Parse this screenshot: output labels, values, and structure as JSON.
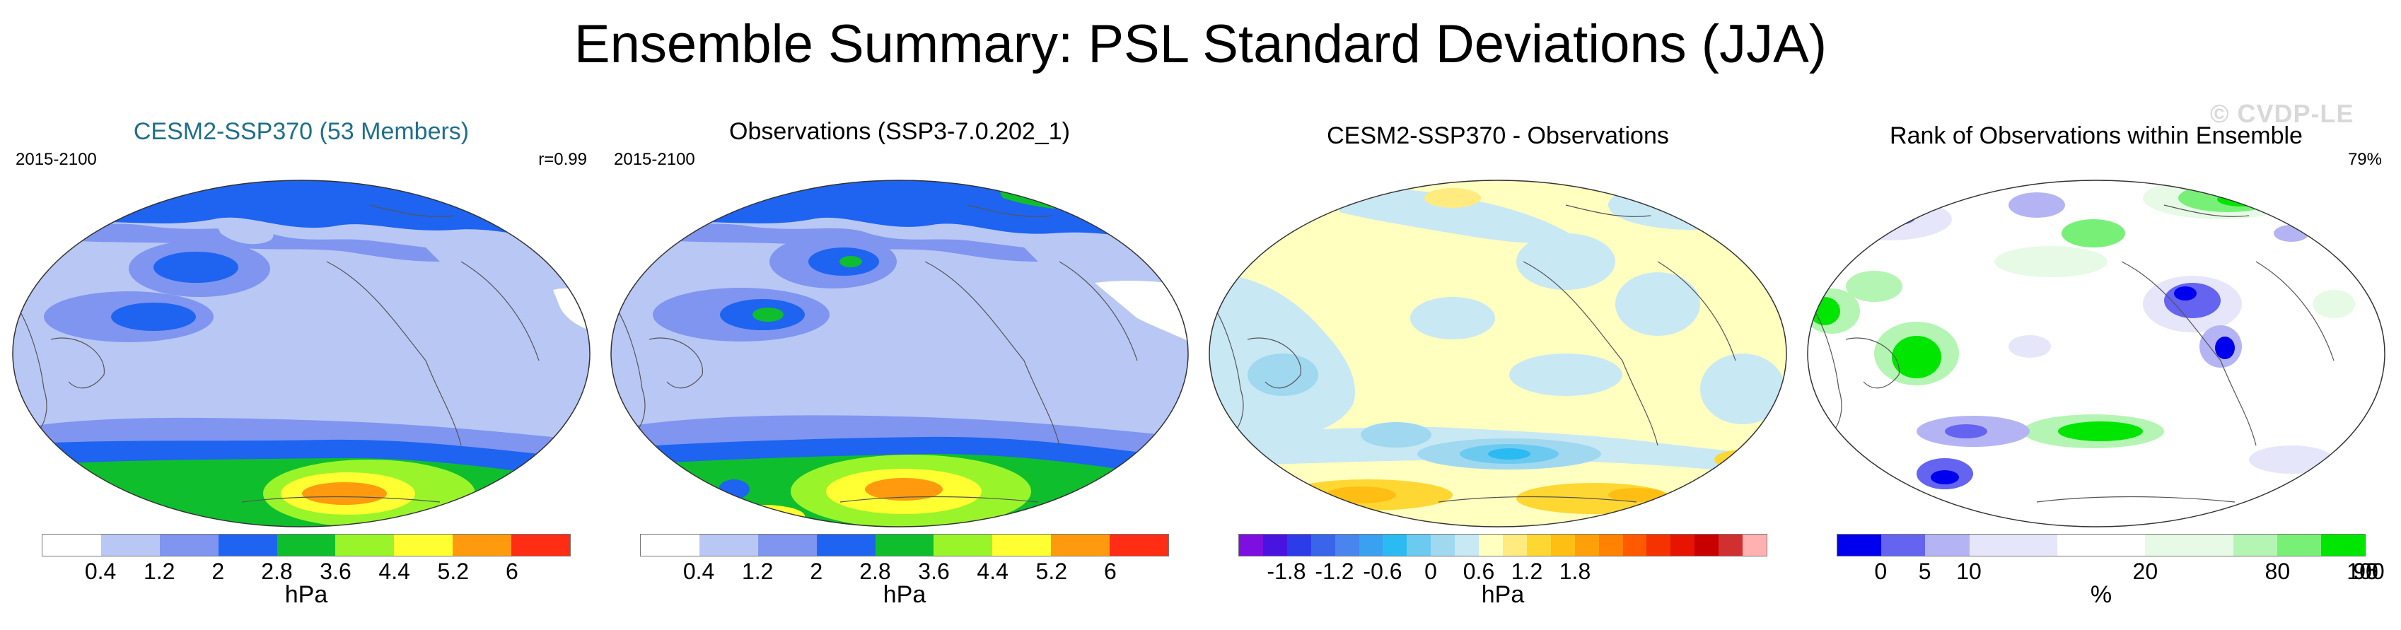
{
  "title": "Ensemble Summary: PSL Standard Deviations (JJA)",
  "watermark": "© CVDP-LE",
  "chart_data": [
    {
      "type": "heatmap",
      "title": "CESM2-SSP370 (53 Members)",
      "period": "2015-2100",
      "stat": "r=0.99",
      "units": "hPa",
      "tick_labels": [
        "0.4",
        "1.2",
        "2",
        "2.8",
        "3.6",
        "4.4",
        "5.2",
        "6"
      ],
      "tick_positions": [
        1,
        3,
        5,
        7,
        9,
        11,
        13,
        15
      ],
      "colorbar_colors": [
        "#ffffff",
        "#b9c7f5",
        "#7f95f0",
        "#1e64f0",
        "#0fbe2d",
        "#99f52a",
        "#ffff32",
        "#ff9a0f",
        "#ff2d14"
      ],
      "colorbar_bounds_hpa": [
        0.4,
        1.2,
        2,
        2.8,
        3.6,
        4.4,
        5.2,
        6
      ]
    },
    {
      "type": "heatmap",
      "title": "Observations (SSP3-7.0.202_1)",
      "period": "2015-2100",
      "units": "hPa",
      "tick_labels": [
        "0.4",
        "1.2",
        "2",
        "2.8",
        "3.6",
        "4.4",
        "5.2",
        "6"
      ],
      "tick_positions": [
        1,
        3,
        5,
        7,
        9,
        11,
        13,
        15
      ],
      "colorbar_colors": [
        "#ffffff",
        "#b9c7f5",
        "#7f95f0",
        "#1e64f0",
        "#0fbe2d",
        "#99f52a",
        "#ffff32",
        "#ff9a0f",
        "#ff2d14"
      ],
      "colorbar_bounds_hpa": [
        0.4,
        1.2,
        2,
        2.8,
        3.6,
        4.4,
        5.2,
        6
      ]
    },
    {
      "type": "heatmap",
      "title": "CESM2-SSP370 - Observations",
      "units": "hPa",
      "tick_labels": [
        "-1.8",
        "-1.2",
        "-0.6",
        "0",
        "0.6",
        "1.2",
        "1.8"
      ],
      "tick_positions": [
        3,
        7,
        11,
        15,
        19,
        23,
        27
      ],
      "colorbar_colors": [
        "#7d10e0",
        "#4a14e0",
        "#2c3ce8",
        "#3a64ea",
        "#4a84ee",
        "#3aa0f0",
        "#2cbaf2",
        "#6ccaf0",
        "#a0d8f0",
        "#c8e8f4",
        "#ffffc0",
        "#ffeb80",
        "#ffd732",
        "#ffbe14",
        "#ffa00a",
        "#ff8200",
        "#ff5a00",
        "#f53200",
        "#e61400",
        "#c80000",
        "#d03030",
        "#ffb0b0"
      ],
      "colorbar_bounds_hpa": [
        -1.8,
        -1.2,
        -0.6,
        0,
        0.6,
        1.2,
        1.8
      ]
    },
    {
      "type": "heatmap",
      "title": "Rank of Observations within Ensemble",
      "stat": "79%",
      "units": "%",
      "tick_labels": [
        "0",
        "5",
        "10",
        "20",
        "80",
        "90",
        "95",
        "100"
      ],
      "tick_positions": [
        1,
        2,
        3,
        5,
        7,
        9,
        10,
        11
      ],
      "colorbar_colors": [
        "#0000ee",
        "#6464f0",
        "#b4b4f5",
        "#e6e6fa",
        "#ffffff",
        "#e6fae6",
        "#b4f5b4",
        "#78f078",
        "#00e600"
      ],
      "colorbar_widths": [
        1,
        1,
        1,
        2,
        2,
        2,
        1,
        1,
        1
      ],
      "colorbar_bounds_pct": [
        0,
        5,
        10,
        20,
        80,
        90,
        95,
        100
      ]
    }
  ]
}
